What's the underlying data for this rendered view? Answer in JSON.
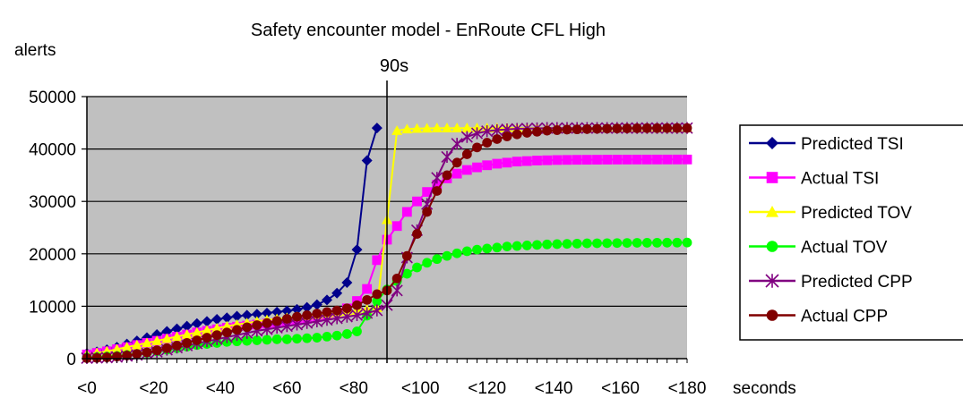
{
  "chart_data": {
    "type": "line",
    "title": "Safety encounter model - EnRoute CFL High",
    "ylabel": "alerts",
    "xlabel": "seconds",
    "annotation": "90s",
    "annotation_x": 90,
    "ylim": [
      0,
      50000
    ],
    "yticks": [
      0,
      10000,
      20000,
      30000,
      40000,
      50000
    ],
    "xlim": [
      0,
      180
    ],
    "xtick_values": [
      0,
      20,
      40,
      60,
      80,
      100,
      120,
      140,
      160,
      180
    ],
    "xtick_labels": [
      "<0",
      "<20",
      "<40",
      "<60",
      "<80",
      "<100",
      "<120",
      "<140",
      "<160",
      "<180"
    ],
    "grid": true,
    "legend_position": "right",
    "x": [
      0,
      3,
      6,
      9,
      12,
      15,
      18,
      21,
      24,
      27,
      30,
      33,
      36,
      39,
      42,
      45,
      48,
      51,
      54,
      57,
      60,
      63,
      66,
      69,
      72,
      75,
      78,
      81,
      84,
      87,
      90,
      93,
      96,
      99,
      102,
      105,
      108,
      111,
      114,
      117,
      120,
      123,
      126,
      129,
      132,
      135,
      138,
      141,
      144,
      147,
      150,
      153,
      156,
      159,
      162,
      165,
      168,
      171,
      174,
      177,
      180
    ],
    "series": [
      {
        "name": "Predicted TSI",
        "color": "#00008B",
        "marker": "diamond",
        "values": [
          1000,
          1300,
          1700,
          2200,
          2800,
          3400,
          4000,
          4600,
          5200,
          5700,
          6200,
          6700,
          7100,
          7500,
          7800,
          8100,
          8300,
          8500,
          8700,
          8900,
          9100,
          9400,
          9800,
          10300,
          11200,
          12500,
          14500,
          20800,
          37800,
          44000,
          null,
          null,
          null,
          null,
          null,
          null,
          null,
          null,
          null,
          null,
          null,
          null,
          null,
          null,
          null,
          null,
          null,
          null,
          null,
          null,
          null,
          null,
          null,
          null,
          null,
          null,
          null,
          null,
          null,
          null,
          null
        ]
      },
      {
        "name": "Actual TSI",
        "color": "#FF00FF",
        "marker": "square",
        "values": [
          800,
          1100,
          1400,
          1800,
          2200,
          2600,
          3000,
          3400,
          3800,
          4200,
          4600,
          5000,
          5300,
          5600,
          5900,
          6100,
          6300,
          6500,
          6700,
          6900,
          7100,
          7300,
          7600,
          7900,
          8300,
          8800,
          9600,
          11000,
          13300,
          18800,
          22700,
          25300,
          28000,
          30000,
          31800,
          33200,
          34400,
          35300,
          36000,
          36500,
          36900,
          37200,
          37400,
          37600,
          37700,
          37800,
          37850,
          37900,
          37920,
          37940,
          37950,
          37960,
          37970,
          37980,
          37985,
          37990,
          37992,
          37994,
          37996,
          37998,
          38000
        ]
      },
      {
        "name": "Predicted TOV",
        "color": "#FFFF00",
        "marker": "triangle",
        "values": [
          800,
          1100,
          1400,
          1800,
          2200,
          2600,
          3000,
          3400,
          3800,
          4200,
          4600,
          5000,
          5400,
          5800,
          6200,
          6500,
          6800,
          7100,
          7400,
          7600,
          7800,
          8000,
          8200,
          8400,
          8600,
          8800,
          9000,
          9200,
          9400,
          9700,
          26500,
          43500,
          43800,
          43900,
          43950,
          44000,
          44000,
          44000,
          44000,
          44000,
          44000,
          44000,
          44000,
          44000,
          44000,
          44000,
          44000,
          44000,
          44000,
          44000,
          44000,
          44000,
          44000,
          44000,
          44000,
          44000,
          44000,
          44000,
          44000,
          44000,
          44000
        ]
      },
      {
        "name": "Actual TOV",
        "color": "#00FF00",
        "marker": "circle",
        "values": [
          200,
          300,
          400,
          500,
          700,
          900,
          1100,
          1400,
          1700,
          2000,
          2300,
          2600,
          2800,
          3000,
          3200,
          3300,
          3400,
          3500,
          3600,
          3700,
          3700,
          3800,
          3900,
          4000,
          4200,
          4400,
          4700,
          5200,
          8200,
          11000,
          13200,
          14800,
          16200,
          17400,
          18300,
          19000,
          19600,
          20100,
          20500,
          20800,
          21000,
          21200,
          21400,
          21500,
          21600,
          21700,
          21800,
          21850,
          21900,
          21950,
          22000,
          22020,
          22040,
          22060,
          22080,
          22100,
          22110,
          22120,
          22130,
          22140,
          22150
        ]
      },
      {
        "name": "Predicted CPP",
        "color": "#800080",
        "marker": "star",
        "values": [
          100,
          150,
          200,
          300,
          500,
          700,
          1000,
          1300,
          1700,
          2100,
          2500,
          2900,
          3300,
          3700,
          4100,
          4500,
          4900,
          5300,
          5600,
          5900,
          6200,
          6500,
          6800,
          7100,
          7400,
          7700,
          8000,
          8300,
          8700,
          9200,
          10200,
          13000,
          19300,
          24500,
          29500,
          34500,
          38500,
          41000,
          42300,
          43000,
          43400,
          43600,
          43750,
          43850,
          43900,
          43950,
          44000,
          44000,
          44000,
          44000,
          44000,
          44000,
          44000,
          44000,
          44000,
          44000,
          44000,
          44000,
          44000,
          44000,
          44000
        ]
      },
      {
        "name": "Actual CPP",
        "color": "#800000",
        "marker": "circle",
        "values": [
          100,
          150,
          250,
          400,
          600,
          900,
          1200,
          1600,
          2000,
          2500,
          3000,
          3500,
          4000,
          4500,
          5000,
          5500,
          6000,
          6400,
          6800,
          7200,
          7600,
          8000,
          8300,
          8600,
          8900,
          9200,
          9600,
          10200,
          11200,
          12300,
          13000,
          15300,
          19600,
          23800,
          28000,
          32000,
          35000,
          37400,
          39000,
          40300,
          41200,
          41900,
          42400,
          42800,
          43100,
          43300,
          43500,
          43600,
          43700,
          43750,
          43800,
          43850,
          43880,
          43910,
          43940,
          43960,
          43970,
          43980,
          43990,
          43995,
          44000
        ]
      }
    ]
  }
}
